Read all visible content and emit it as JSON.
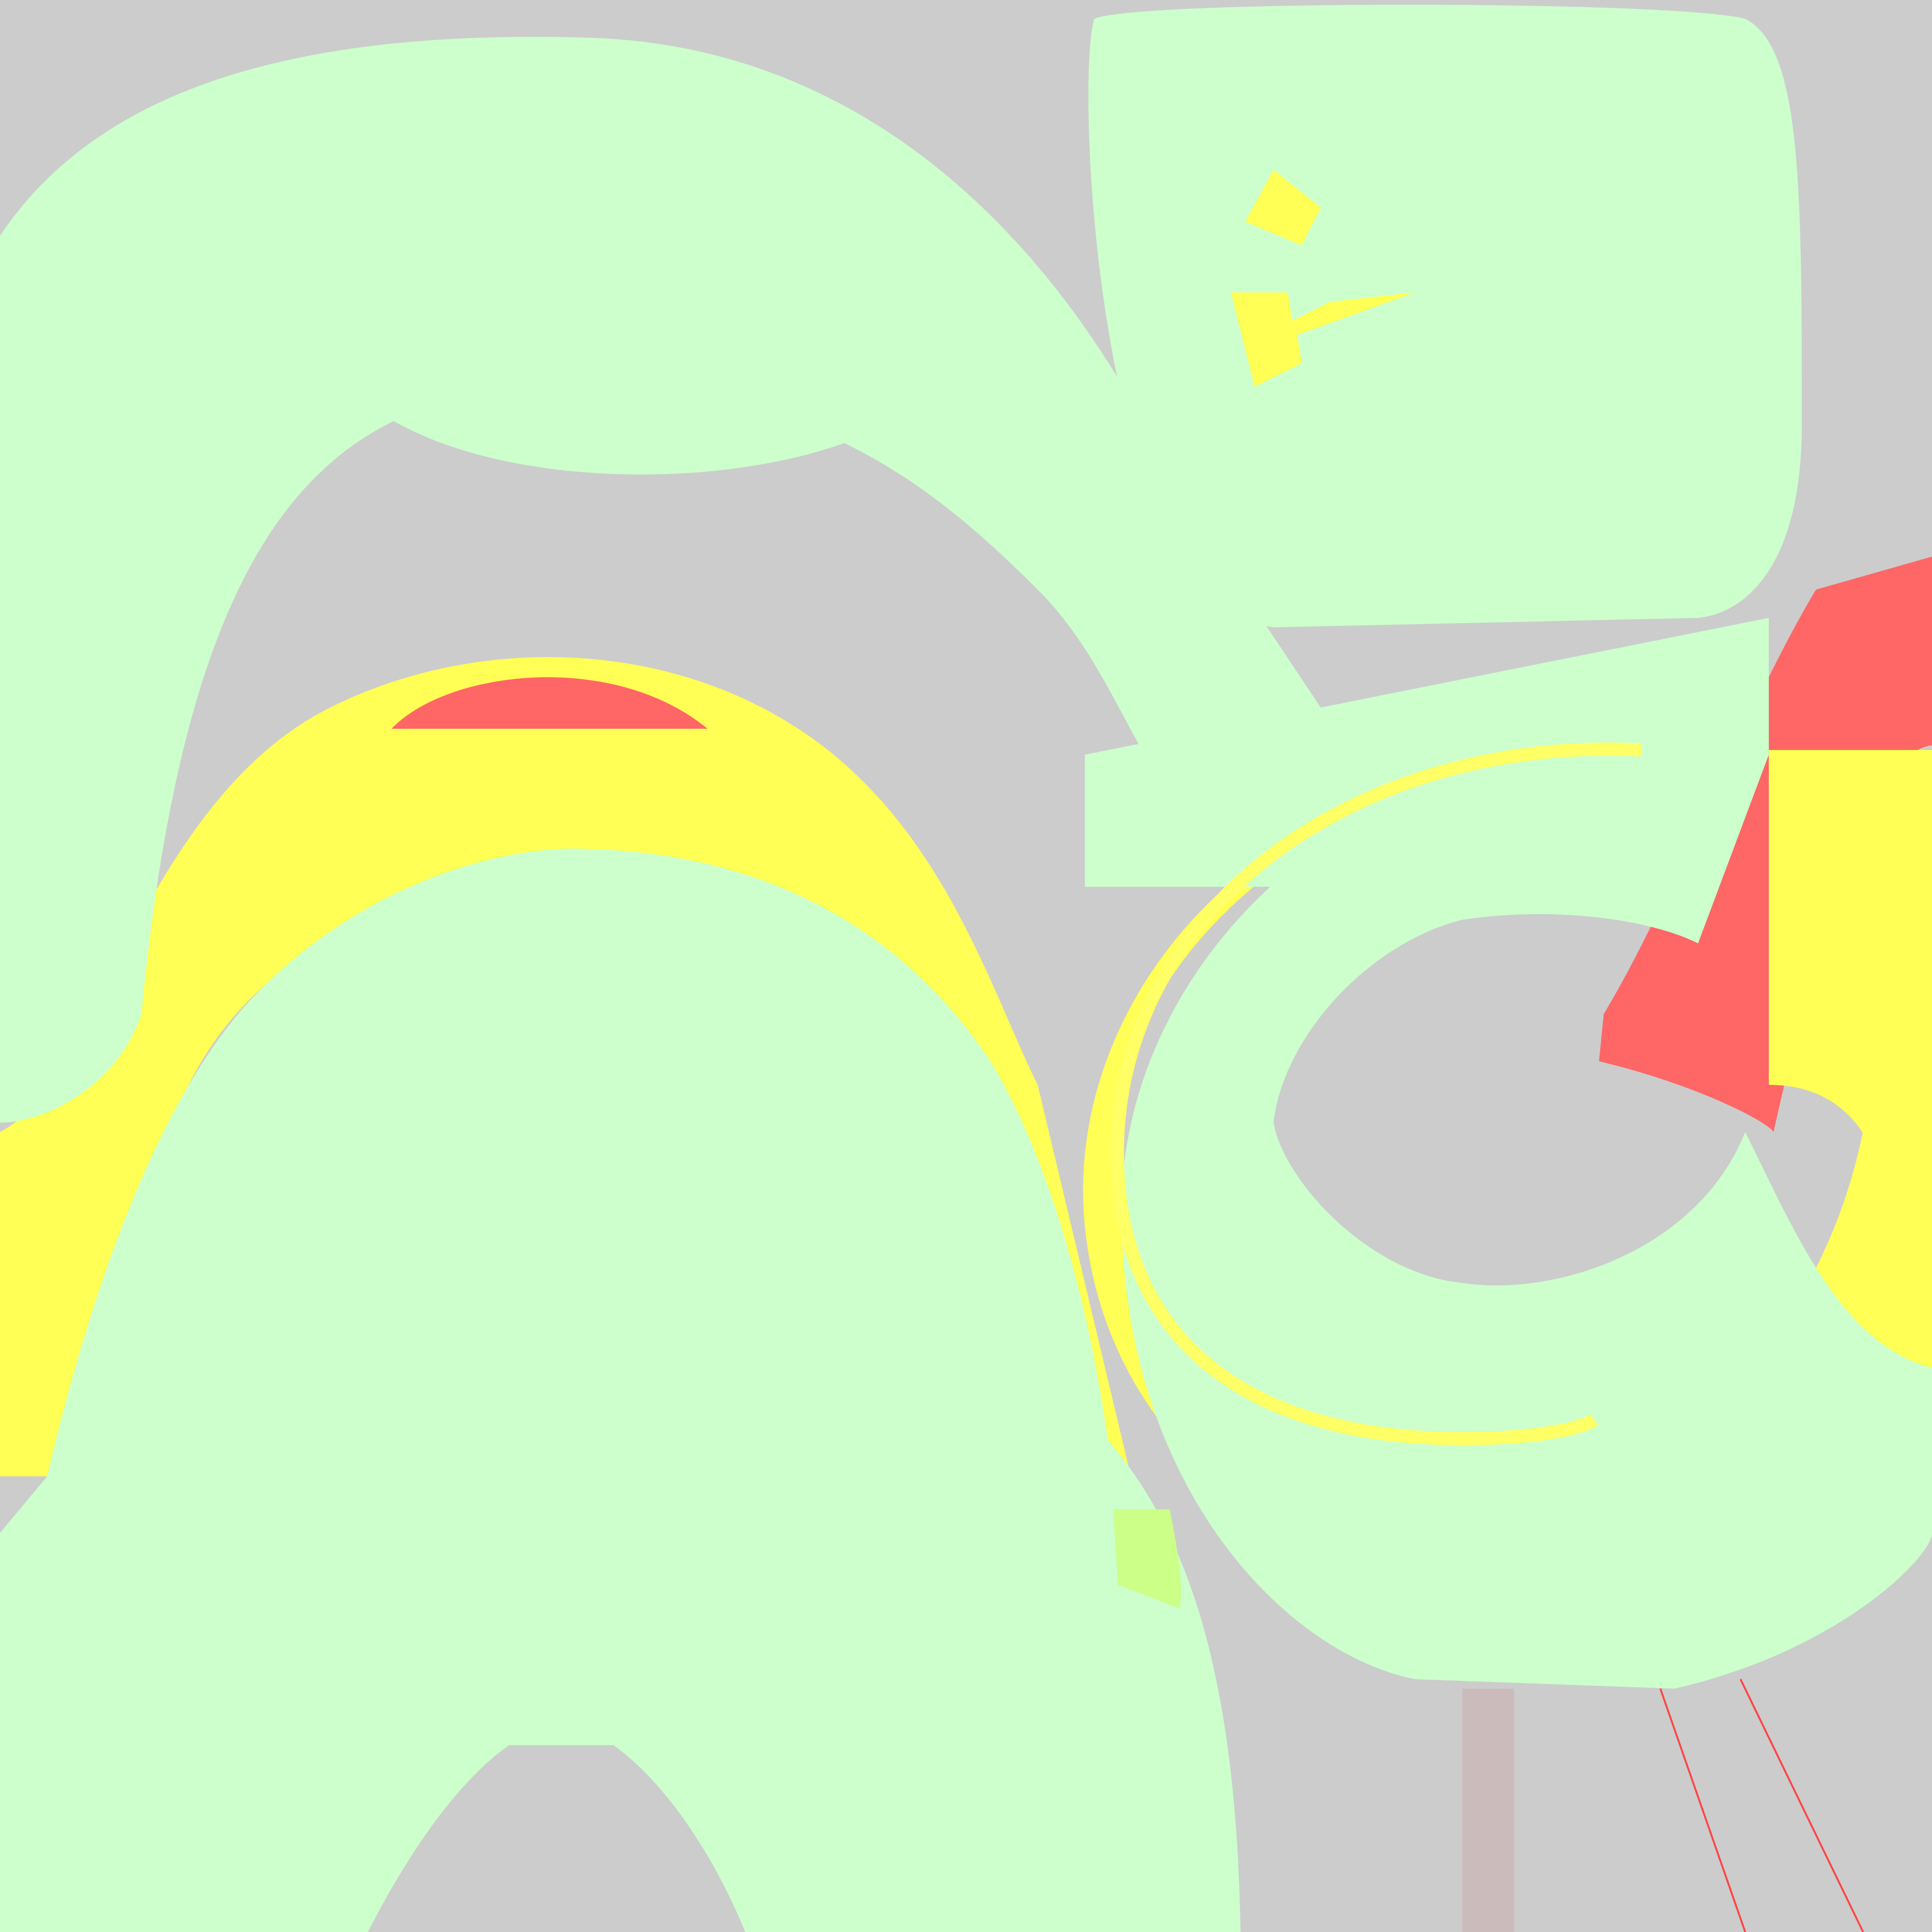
{
  "colors": {
    "background": "#cccccc",
    "shape_fill": "#ccffcc",
    "shape_fill_alt": "#c9f5cc",
    "accent_yellow": "#ffff55",
    "accent_red": "#ff6666",
    "accent_lime": "#ccff88"
  }
}
